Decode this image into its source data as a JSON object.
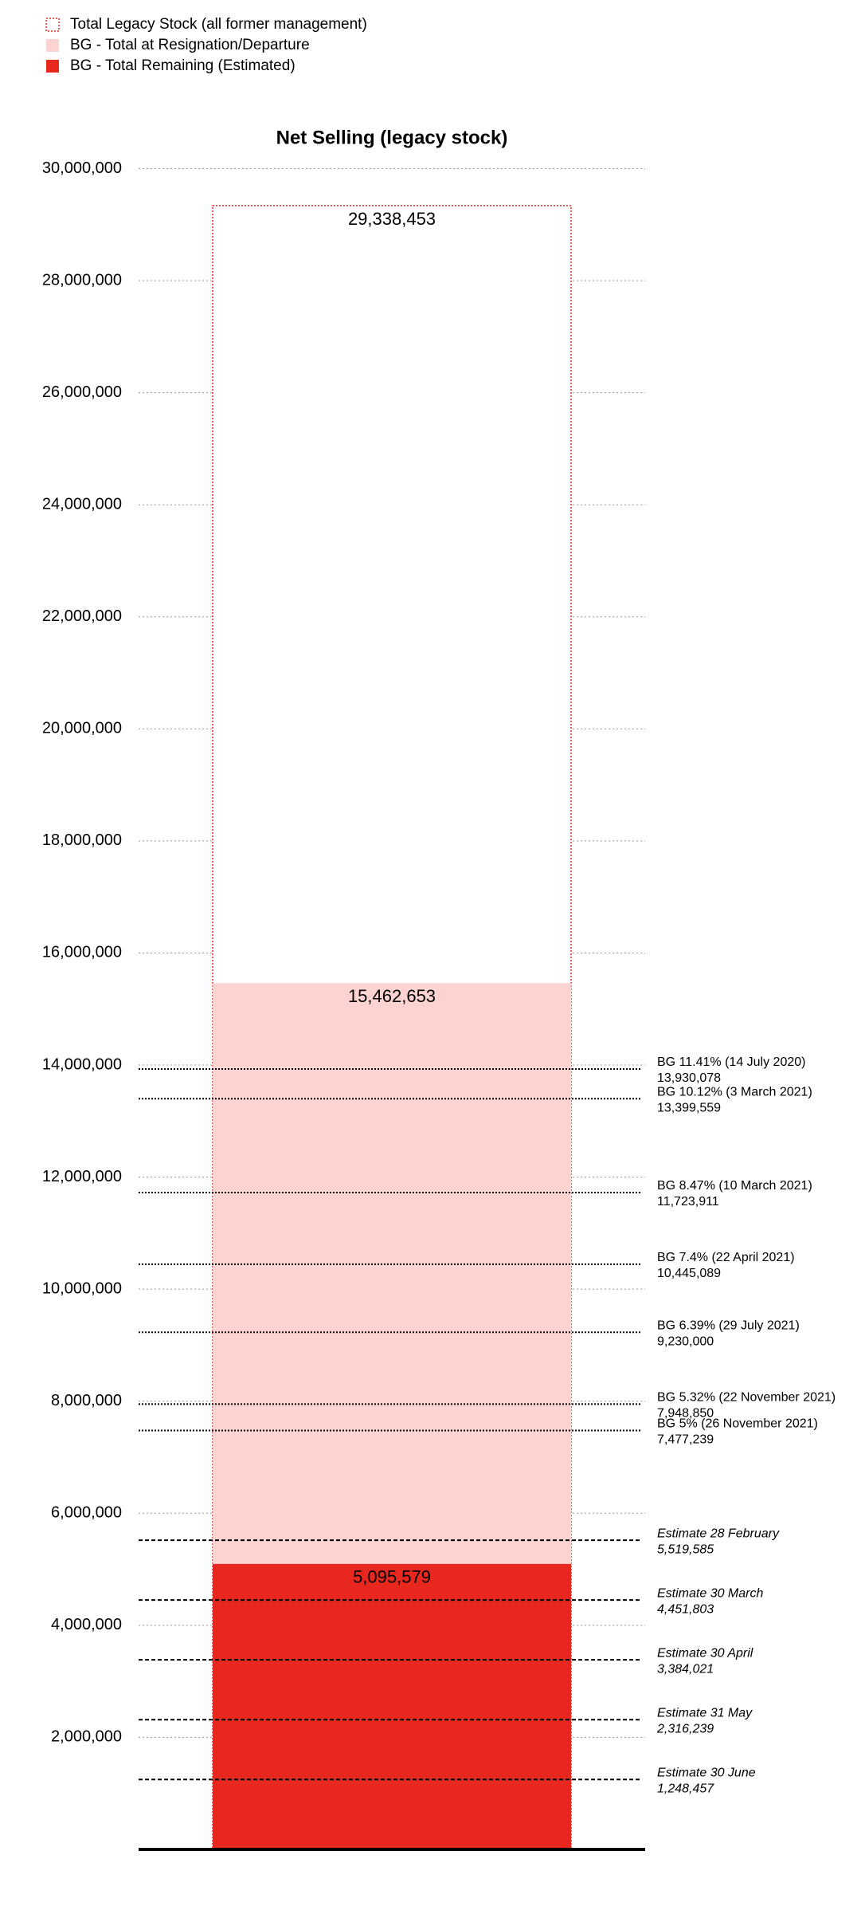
{
  "chart_data": {
    "type": "bar",
    "title": "Net Selling (legacy stock)",
    "categories": [
      null
    ],
    "series": [
      {
        "name": "Total Legacy Stock (all former management)",
        "color": "#e8281f",
        "style": "outline",
        "values": [
          29338453
        ],
        "value_labels": [
          "29,338,453"
        ]
      },
      {
        "name": "BG - Total at Resignation/Departure",
        "color": "#fcd3d0",
        "style": "fill",
        "values": [
          15462653
        ],
        "value_labels": [
          "15,462,653"
        ]
      },
      {
        "name": "BG - Total Remaining (Estimated)",
        "color": "#e8281f",
        "style": "fill",
        "values": [
          5095579
        ],
        "value_labels": [
          "5,095,579"
        ]
      }
    ],
    "ylim": [
      0,
      30000000
    ],
    "yticks": [
      {
        "value": 2000000,
        "label": "2,000,000"
      },
      {
        "value": 4000000,
        "label": "4,000,000"
      },
      {
        "value": 6000000,
        "label": "6,000,000"
      },
      {
        "value": 8000000,
        "label": "8,000,000"
      },
      {
        "value": 10000000,
        "label": "10,000,000"
      },
      {
        "value": 12000000,
        "label": "12,000,000"
      },
      {
        "value": 14000000,
        "label": "14,000,000"
      },
      {
        "value": 16000000,
        "label": "16,000,000"
      },
      {
        "value": 18000000,
        "label": "18,000,000"
      },
      {
        "value": 20000000,
        "label": "20,000,000"
      },
      {
        "value": 22000000,
        "label": "22,000,000"
      },
      {
        "value": 24000000,
        "label": "24,000,000"
      },
      {
        "value": 26000000,
        "label": "26,000,000"
      },
      {
        "value": 28000000,
        "label": "28,000,000"
      },
      {
        "value": 30000000,
        "label": "30,000,000"
      }
    ],
    "grid": true,
    "legend": "top-left",
    "reference_lines": [
      {
        "label": "BG 11.41% (14 July 2020)",
        "value": 13930078,
        "value_label": "13,930,078",
        "style": "dotted"
      },
      {
        "label": "BG 10.12% (3 March 2021)",
        "value": 13399559,
        "value_label": "13,399,559",
        "style": "dotted"
      },
      {
        "label": "BG 8.47% (10 March 2021)",
        "value": 11723911,
        "value_label": "11,723,911",
        "style": "dotted"
      },
      {
        "label": "BG 7.4% (22 April 2021)",
        "value": 10445089,
        "value_label": "10,445,089",
        "style": "dotted"
      },
      {
        "label": "BG 6.39% (29 July 2021)",
        "value": 9230000,
        "value_label": "9,230,000",
        "style": "dotted"
      },
      {
        "label": "BG 5.32% (22 November 2021)",
        "value": 7948850,
        "value_label": "7,948,850",
        "style": "dotted"
      },
      {
        "label": "BG 5% (26 November 2021)",
        "value": 7477239,
        "value_label": "7,477,239",
        "style": "dotted"
      },
      {
        "label": "Estimate 28 February",
        "value": 5519585,
        "value_label": "5,519,585",
        "style": "dashed"
      },
      {
        "label": "Estimate 30 March",
        "value": 4451803,
        "value_label": "4,451,803",
        "style": "dashed"
      },
      {
        "label": "Estimate 30 April",
        "value": 3384021,
        "value_label": "3,384,021",
        "style": "dashed"
      },
      {
        "label": "Estimate 31 May",
        "value": 2316239,
        "value_label": "2,316,239",
        "style": "dashed"
      },
      {
        "label": "Estimate 30 June",
        "value": 1248457,
        "value_label": "1,248,457",
        "style": "dashed"
      }
    ]
  }
}
